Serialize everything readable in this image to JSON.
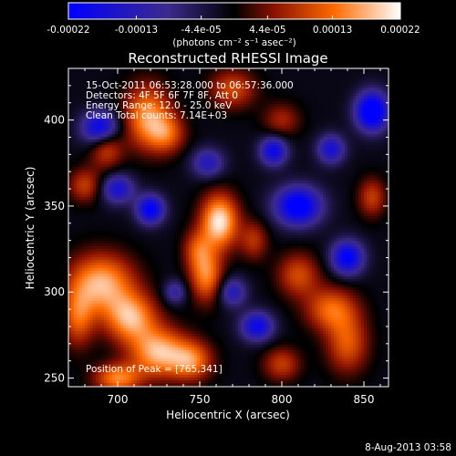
{
  "chart_data": {
    "type": "heatmap",
    "title": "Reconstructed RHESSI Image",
    "xlabel": "Heliocentric X (arcsec)",
    "ylabel": "Heliocentric Y (arcsec)",
    "xlim": [
      670,
      865
    ],
    "ylim": [
      245,
      430
    ],
    "x_ticks": [
      700,
      750,
      800,
      850
    ],
    "y_ticks": [
      250,
      300,
      350,
      400
    ],
    "colorbar": {
      "range": [
        -0.00022,
        0.00022
      ],
      "tick_values": [
        -0.00022,
        -0.00013,
        -4.4e-05,
        4.4e-05,
        0.00013,
        0.00022
      ],
      "tick_labels": [
        "-0.00022",
        "-0.00013",
        "-4.4e-05",
        "4.4e-05",
        "0.00013",
        "0.00022"
      ],
      "unit_label": "(photons cm⁻² s⁻¹ asec⁻²)",
      "colors": [
        "#0000ff",
        "#3c2a8c",
        "#000000",
        "#8a1200",
        "#ff6a00",
        "#ffffff"
      ]
    },
    "annotations": {
      "time": "15-Oct-2011 06:53:28.000 to 06:57:36.000",
      "detectors": "Detectors: 4F 5F 6F 7F 8F, Att 0",
      "energy": "Energy Range: 12.0 - 25.0 keV",
      "clean": "Clean     Total counts: 7.14E+03",
      "peak": "Position of Peak = [765,341]"
    },
    "peak": {
      "x": 765,
      "y": 341
    },
    "sources": [
      {
        "x": 762,
        "y": 341,
        "sx": 8,
        "sy": 11,
        "amp": 1.0
      },
      {
        "x": 754,
        "y": 310,
        "sx": 7,
        "sy": 11,
        "amp": 0.7
      },
      {
        "x": 748,
        "y": 325,
        "sx": 6,
        "sy": 8,
        "amp": 0.4
      },
      {
        "x": 690,
        "y": 305,
        "sx": 14,
        "sy": 12,
        "amp": 0.85
      },
      {
        "x": 708,
        "y": 285,
        "sx": 11,
        "sy": 10,
        "amp": 0.8
      },
      {
        "x": 725,
        "y": 265,
        "sx": 12,
        "sy": 10,
        "amp": 0.85
      },
      {
        "x": 745,
        "y": 260,
        "sx": 9,
        "sy": 8,
        "amp": 0.65
      },
      {
        "x": 700,
        "y": 250,
        "sx": 10,
        "sy": 6,
        "amp": 0.7
      },
      {
        "x": 676,
        "y": 285,
        "sx": 7,
        "sy": 12,
        "amp": 0.55
      },
      {
        "x": 718,
        "y": 402,
        "sx": 10,
        "sy": 13,
        "amp": 0.75
      },
      {
        "x": 730,
        "y": 392,
        "sx": 8,
        "sy": 8,
        "amp": 0.5
      },
      {
        "x": 693,
        "y": 385,
        "sx": 7,
        "sy": 9,
        "amp": 0.55
      },
      {
        "x": 770,
        "y": 418,
        "sx": 10,
        "sy": 8,
        "amp": 0.5
      },
      {
        "x": 800,
        "y": 400,
        "sx": 8,
        "sy": 7,
        "amp": 0.35
      },
      {
        "x": 810,
        "y": 310,
        "sx": 9,
        "sy": 9,
        "amp": 0.5
      },
      {
        "x": 830,
        "y": 290,
        "sx": 11,
        "sy": 9,
        "amp": 0.6
      },
      {
        "x": 840,
        "y": 270,
        "sx": 9,
        "sy": 12,
        "amp": 0.55
      },
      {
        "x": 800,
        "y": 258,
        "sx": 8,
        "sy": 7,
        "amp": 0.45
      },
      {
        "x": 783,
        "y": 330,
        "sx": 6,
        "sy": 8,
        "amp": 0.4
      },
      {
        "x": 855,
        "y": 355,
        "sx": 6,
        "sy": 8,
        "amp": 0.45
      },
      {
        "x": 680,
        "y": 362,
        "sx": 7,
        "sy": 7,
        "amp": 0.45
      },
      {
        "x": 690,
        "y": 395,
        "sx": 8,
        "sy": 7,
        "amp": -0.9
      },
      {
        "x": 720,
        "y": 348,
        "sx": 6,
        "sy": 6,
        "amp": -0.8
      },
      {
        "x": 700,
        "y": 360,
        "sx": 7,
        "sy": 6,
        "amp": -0.6
      },
      {
        "x": 795,
        "y": 382,
        "sx": 6,
        "sy": 6,
        "amp": -0.7
      },
      {
        "x": 810,
        "y": 350,
        "sx": 10,
        "sy": 8,
        "amp": -0.9
      },
      {
        "x": 840,
        "y": 320,
        "sx": 7,
        "sy": 7,
        "amp": -0.8
      },
      {
        "x": 855,
        "y": 405,
        "sx": 7,
        "sy": 8,
        "amp": -1.0
      },
      {
        "x": 785,
        "y": 280,
        "sx": 7,
        "sy": 6,
        "amp": -0.7
      },
      {
        "x": 770,
        "y": 300,
        "sx": 6,
        "sy": 6,
        "amp": -0.5
      },
      {
        "x": 755,
        "y": 375,
        "sx": 7,
        "sy": 6,
        "amp": -0.5
      },
      {
        "x": 830,
        "y": 383,
        "sx": 6,
        "sy": 6,
        "amp": -0.6
      },
      {
        "x": 735,
        "y": 300,
        "sx": 5,
        "sy": 5,
        "amp": -0.4
      }
    ]
  },
  "footer": {
    "date": "8-Aug-2013 03:58"
  }
}
